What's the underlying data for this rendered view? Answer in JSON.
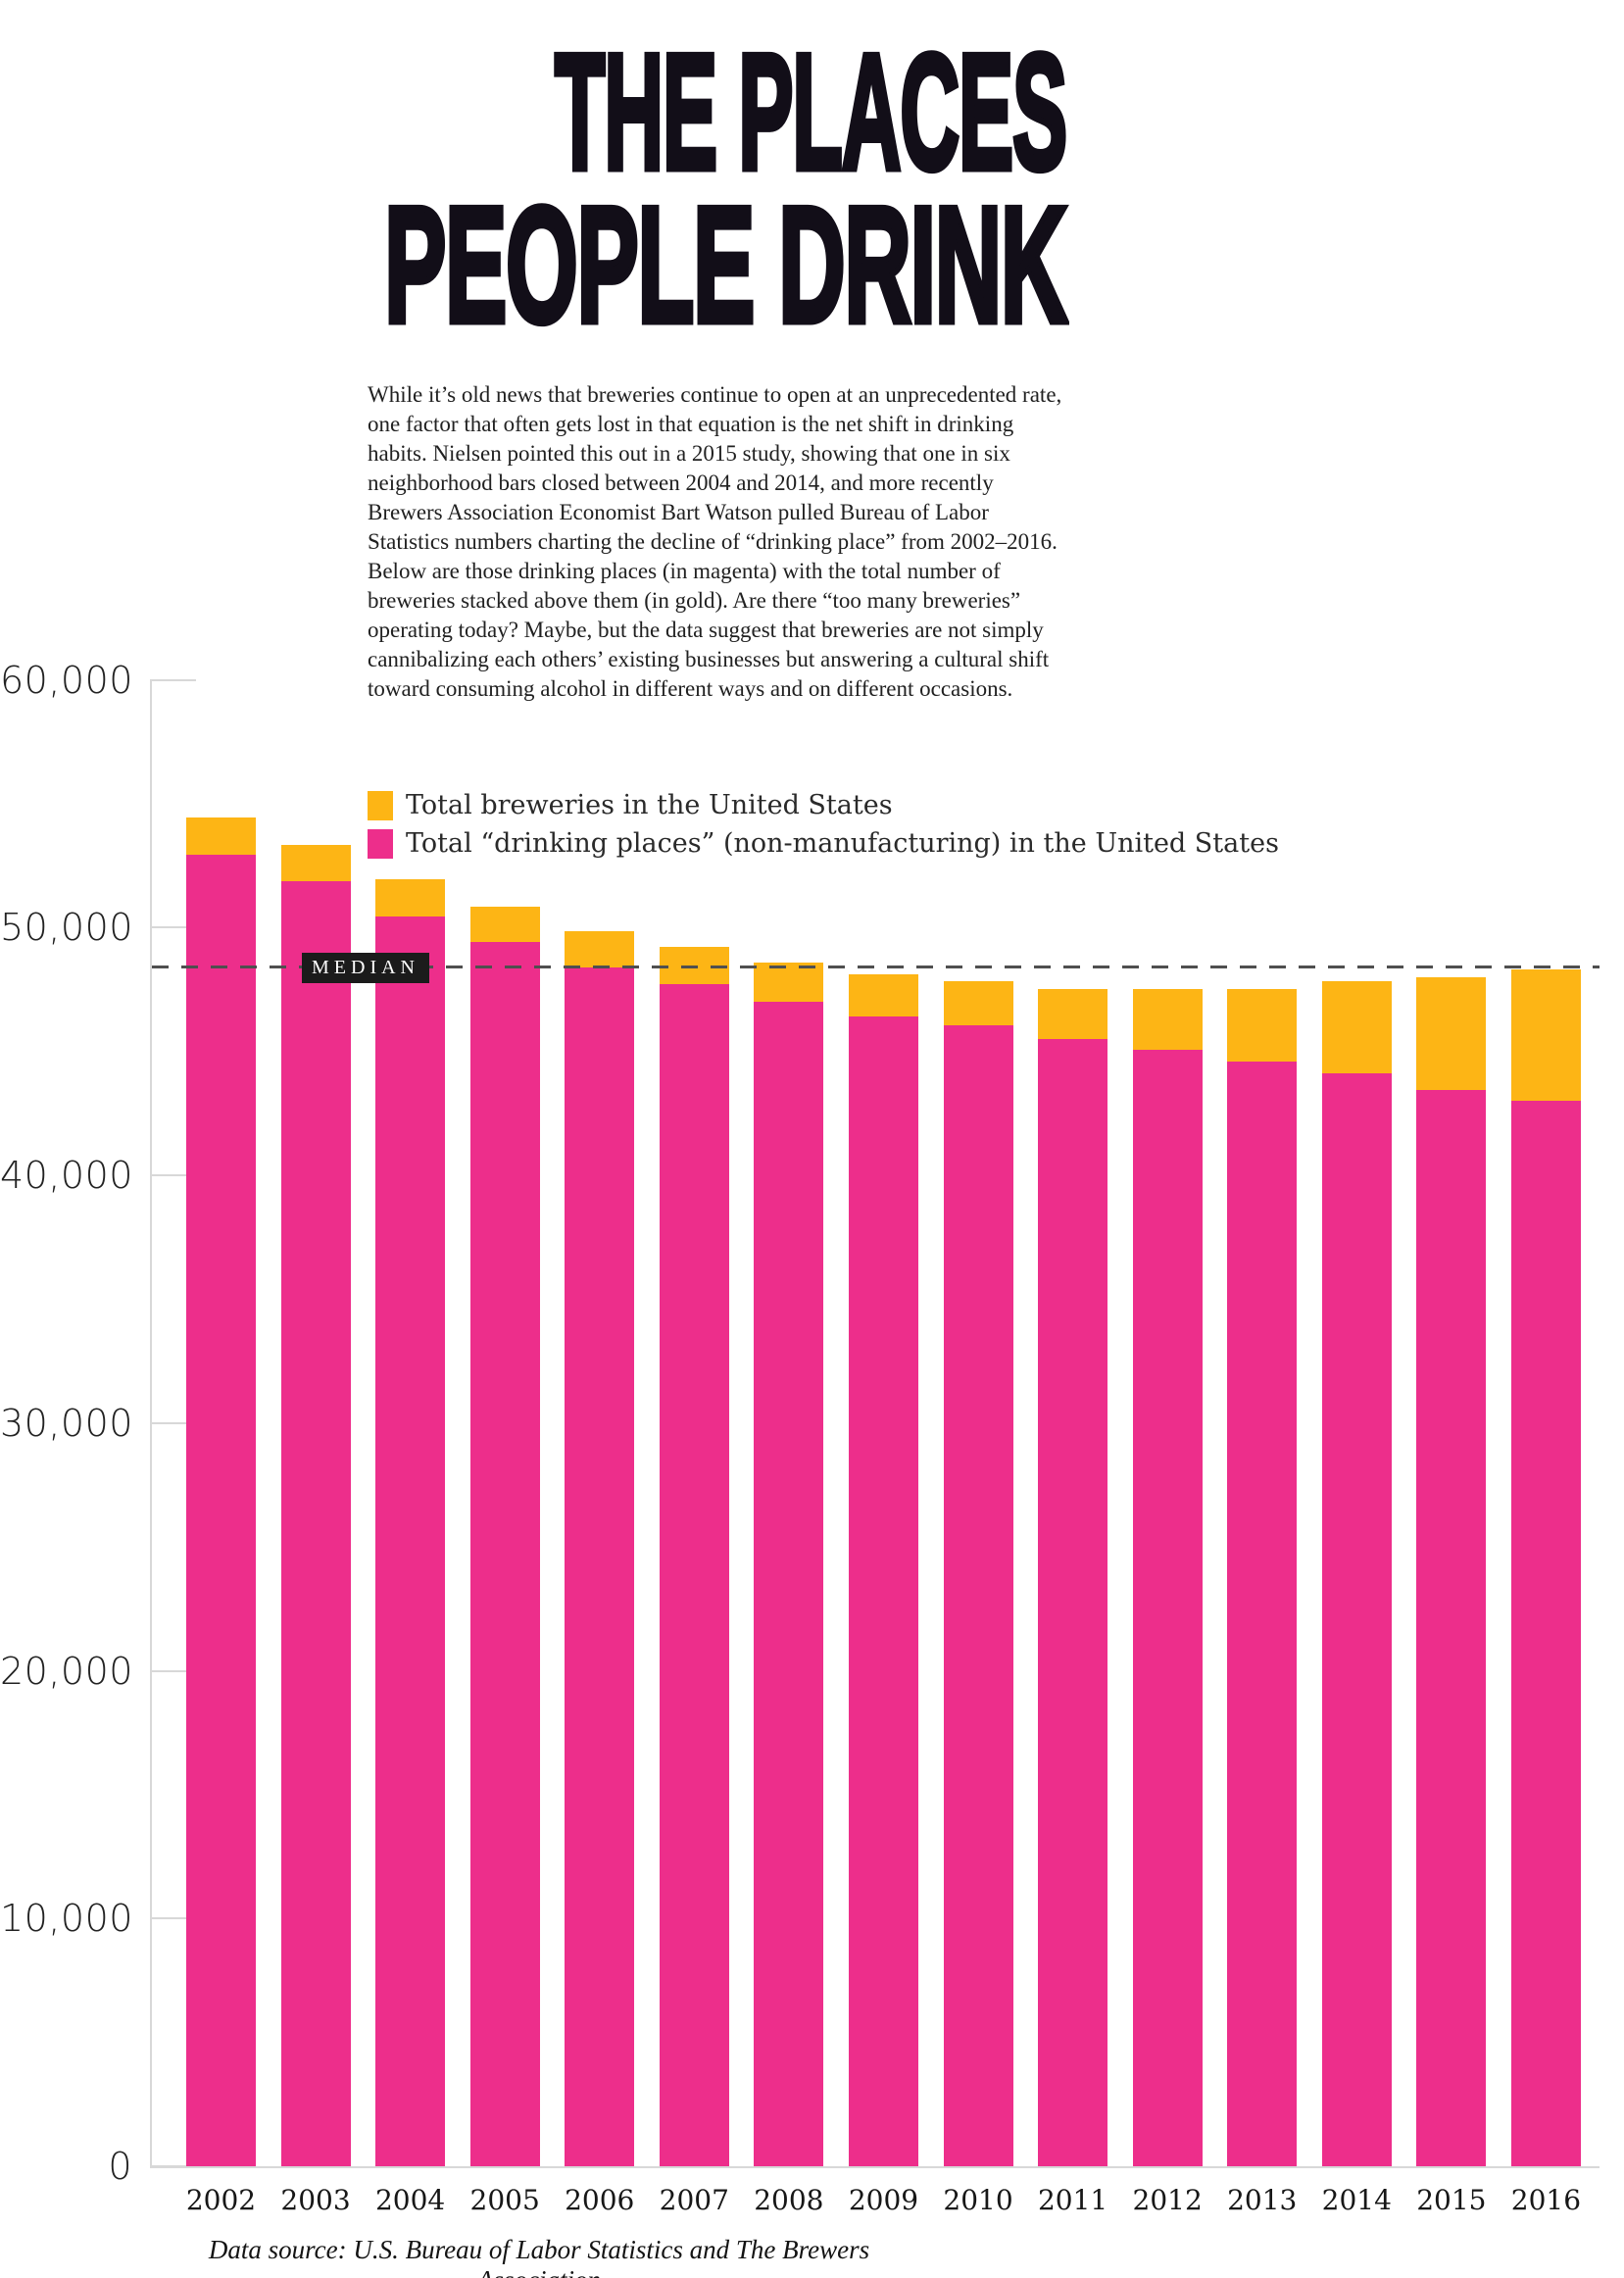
{
  "title": {
    "line1": "THE PLACES",
    "line2": "PEOPLE DRINK"
  },
  "intro": "While it’s old news that breweries continue to open at an unprecedented rate, one factor that often gets lost in that equation is the net shift in drinking habits. Nielsen pointed this out in a 2015 study, showing that one in six neighborhood bars closed between 2004 and 2014, and more recently Brewers Association Economist Bart Watson pulled Bureau of Labor Statistics numbers charting the decline of “drinking place” from 2002–2016. Below are those drinking places (in magenta) with the total number of breweries stacked above them (in gold). Are there “too many breweries” operating today? Maybe, but the data suggest that breweries are not simply cannibalizing each others’ existing businesses but answering a cultural shift toward consuming alcohol in different ways and on different occasions.",
  "legend": [
    {
      "label": "Total breweries in the United States",
      "color": "#FDB515"
    },
    {
      "label": "Total “drinking places” (non-manufacturing) in the United States",
      "color": "#ED2E8B"
    }
  ],
  "median": {
    "label": "MEDIAN",
    "value": 48400
  },
  "source": "Data source: U.S. Bureau of Labor Statistics and The Brewers Association",
  "colors": {
    "gold": "#FDB515",
    "magenta": "#ED2E8B",
    "title": "#120E18",
    "axis": "#D8D8D8",
    "median_line": "#4F4F4F",
    "median_box": "#1B1B1B"
  },
  "chart_data": {
    "type": "bar",
    "stacked": true,
    "categories": [
      "2002",
      "2003",
      "2004",
      "2005",
      "2006",
      "2007",
      "2008",
      "2009",
      "2010",
      "2011",
      "2012",
      "2013",
      "2014",
      "2015",
      "2016"
    ],
    "series": [
      {
        "name": "Total “drinking places” (non-manufacturing) in the United States",
        "color": "#ED2E8B",
        "values": [
          52950,
          51850,
          50450,
          49400,
          48400,
          47700,
          47000,
          46400,
          46050,
          45500,
          45050,
          44600,
          44100,
          43450,
          43000
        ]
      },
      {
        "name": "Total breweries in the United States",
        "color": "#FDB515",
        "values": [
          1500,
          1500,
          1500,
          1450,
          1460,
          1510,
          1600,
          1700,
          1800,
          2000,
          2450,
          2900,
          3750,
          4550,
          5300
        ]
      }
    ],
    "totals": [
      54450,
      53350,
      51950,
      50850,
      49860,
      49210,
      48600,
      48100,
      47850,
      47500,
      47500,
      47500,
      47850,
      48000,
      48300
    ],
    "title": "THE PLACES PEOPLE DRINK",
    "xlabel": "",
    "ylabel": "",
    "ylim": [
      0,
      60000
    ],
    "yticks": {
      "values": [
        0,
        10000,
        20000,
        30000,
        40000,
        50000,
        60000
      ],
      "labels": [
        "0",
        "10,000",
        "20,000",
        "30,000",
        "40,000",
        "50,000",
        "60,000"
      ]
    },
    "grid": false,
    "legend_position": "top-right",
    "median_value": 48400,
    "median_label": "MEDIAN"
  }
}
